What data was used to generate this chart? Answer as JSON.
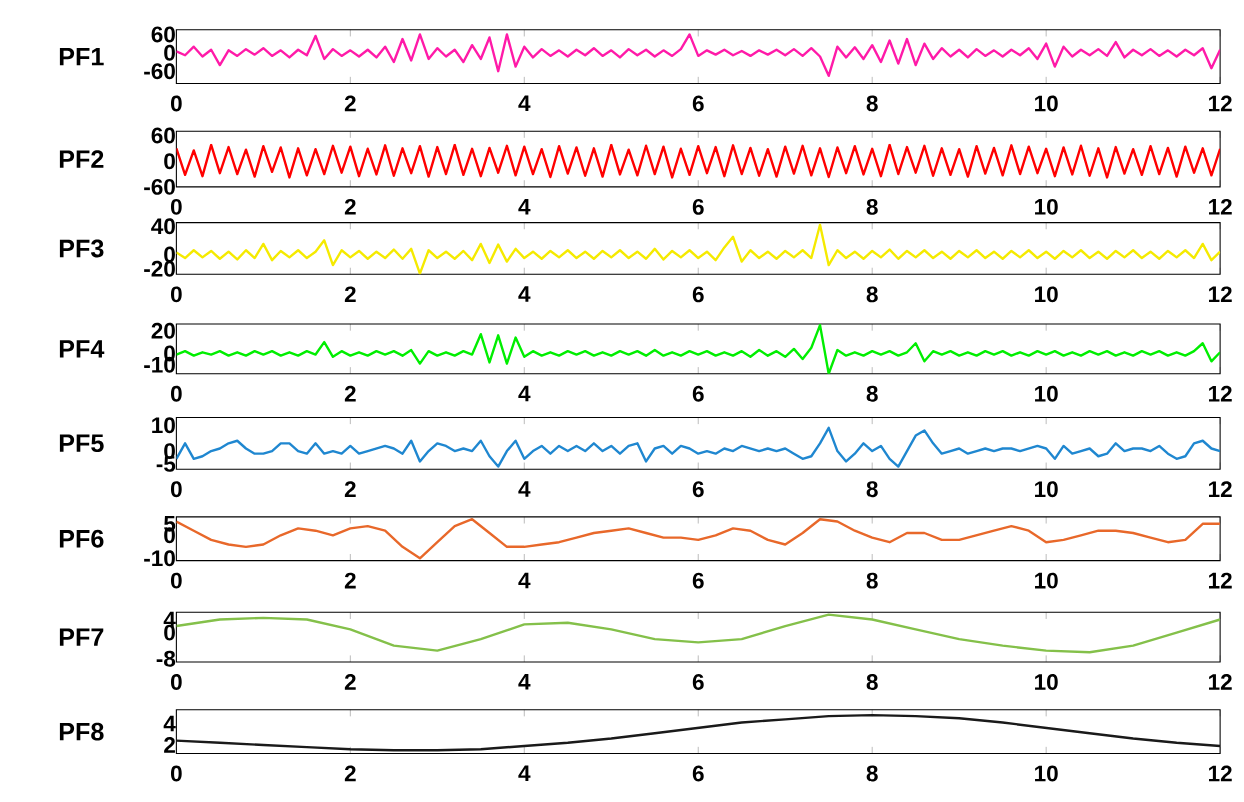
{
  "chart_data": [
    {
      "type": "line",
      "ylabel": "PF1",
      "xlim": [
        0,
        12
      ],
      "xticks": [
        0,
        2,
        4,
        6,
        8,
        10,
        12
      ],
      "ylim": [
        -100,
        75
      ],
      "yticks": [
        -60,
        0,
        60
      ],
      "x": [
        0,
        0.1,
        0.2,
        0.3,
        0.4,
        0.5,
        0.6,
        0.7,
        0.8,
        0.9,
        1,
        1.1,
        1.2,
        1.3,
        1.4,
        1.5,
        1.6,
        1.7,
        1.8,
        1.9,
        2,
        2.1,
        2.2,
        2.3,
        2.4,
        2.5,
        2.6,
        2.7,
        2.8,
        2.9,
        3,
        3.1,
        3.2,
        3.3,
        3.4,
        3.5,
        3.6,
        3.7,
        3.8,
        3.9,
        4,
        4.1,
        4.2,
        4.3,
        4.4,
        4.5,
        4.6,
        4.7,
        4.8,
        4.9,
        5,
        5.1,
        5.2,
        5.3,
        5.4,
        5.5,
        5.6,
        5.7,
        5.8,
        5.9,
        6,
        6.1,
        6.2,
        6.3,
        6.4,
        6.5,
        6.6,
        6.7,
        6.8,
        6.9,
        7,
        7.1,
        7.2,
        7.3,
        7.4,
        7.5,
        7.6,
        7.7,
        7.8,
        7.9,
        8,
        8.1,
        8.2,
        8.3,
        8.4,
        8.5,
        8.6,
        8.7,
        8.8,
        8.9,
        9,
        9.1,
        9.2,
        9.3,
        9.4,
        9.5,
        9.6,
        9.7,
        9.8,
        9.9,
        10,
        10.1,
        10.2,
        10.3,
        10.4,
        10.5,
        10.6,
        10.7,
        10.8,
        10.9,
        11,
        11.1,
        11.2,
        11.3,
        11.4,
        11.5,
        11.6,
        11.7,
        11.8,
        11.9,
        12
      ],
      "series": [
        {
          "color": "#ff1aa8",
          "values": [
            5,
            -8,
            20,
            -12,
            10,
            -40,
            8,
            -10,
            12,
            -6,
            15,
            -10,
            8,
            -15,
            10,
            -8,
            55,
            -20,
            12,
            -10,
            8,
            -12,
            10,
            -15,
            20,
            -30,
            45,
            -25,
            60,
            -20,
            15,
            -12,
            10,
            -30,
            25,
            -20,
            50,
            -60,
            60,
            -45,
            20,
            -15,
            12,
            -10,
            8,
            -12,
            10,
            -8,
            15,
            -10,
            8,
            -15,
            12,
            -8,
            10,
            -12,
            8,
            -10,
            12,
            60,
            -10,
            8,
            -6,
            10,
            -8,
            6,
            -10,
            8,
            -6,
            10,
            -8,
            12,
            -10,
            15,
            -12,
            -75,
            20,
            -15,
            18,
            -20,
            25,
            -30,
            40,
            -35,
            45,
            -40,
            30,
            -20,
            15,
            -12,
            10,
            -15,
            12,
            -10,
            8,
            -12,
            10,
            -8,
            15,
            -20,
            30,
            -45,
            20,
            -12,
            10,
            -8,
            12,
            -10,
            35,
            -15,
            10,
            -8,
            12,
            -10,
            8,
            -12,
            10,
            -8,
            15,
            -50,
            10
          ]
        }
      ]
    },
    {
      "type": "line",
      "ylabel": "PF2",
      "xlim": [
        0,
        12
      ],
      "xticks": [
        0,
        2,
        4,
        6,
        8,
        10,
        12
      ],
      "ylim": [
        -60,
        70
      ],
      "yticks": [
        -60,
        0,
        60
      ],
      "x": [
        0,
        0.1,
        0.2,
        0.3,
        0.4,
        0.5,
        0.6,
        0.7,
        0.8,
        0.9,
        1,
        1.1,
        1.2,
        1.3,
        1.4,
        1.5,
        1.6,
        1.7,
        1.8,
        1.9,
        2,
        2.1,
        2.2,
        2.3,
        2.4,
        2.5,
        2.6,
        2.7,
        2.8,
        2.9,
        3,
        3.1,
        3.2,
        3.3,
        3.4,
        3.5,
        3.6,
        3.7,
        3.8,
        3.9,
        4,
        4.1,
        4.2,
        4.3,
        4.4,
        4.5,
        4.6,
        4.7,
        4.8,
        4.9,
        5,
        5.1,
        5.2,
        5.3,
        5.4,
        5.5,
        5.6,
        5.7,
        5.8,
        5.9,
        6,
        6.1,
        6.2,
        6.3,
        6.4,
        6.5,
        6.6,
        6.7,
        6.8,
        6.9,
        7,
        7.1,
        7.2,
        7.3,
        7.4,
        7.5,
        7.6,
        7.7,
        7.8,
        7.9,
        8,
        8.1,
        8.2,
        8.3,
        8.4,
        8.5,
        8.6,
        8.7,
        8.8,
        8.9,
        9,
        9.1,
        9.2,
        9.3,
        9.4,
        9.5,
        9.6,
        9.7,
        9.8,
        9.9,
        10,
        10.1,
        10.2,
        10.3,
        10.4,
        10.5,
        10.6,
        10.7,
        10.8,
        10.9,
        11,
        11.1,
        11.2,
        11.3,
        11.4,
        11.5,
        11.6,
        11.7,
        11.8,
        11.9,
        12
      ],
      "series": [
        {
          "color": "#ff0000",
          "values": [
            30,
            -32,
            25,
            -35,
            38,
            -28,
            33,
            -30,
            27,
            -36,
            35,
            -25,
            32,
            -38,
            30,
            -33,
            28,
            -30,
            36,
            -27,
            34,
            -35,
            29,
            -31,
            37,
            -34,
            30,
            -28,
            35,
            -36,
            33,
            -30,
            38,
            -32,
            29,
            -35,
            31,
            -27,
            36,
            -33,
            34,
            -30,
            28,
            -37,
            35,
            -29,
            32,
            -34,
            30,
            -36,
            38,
            -31,
            27,
            -33,
            36,
            -30,
            34,
            -38,
            29,
            -32,
            35,
            -28,
            33,
            -35,
            37,
            -30,
            31,
            -34,
            28,
            -36,
            34,
            -29,
            36,
            -33,
            30,
            -37,
            32,
            -28,
            35,
            -31,
            29,
            -35,
            38,
            -30,
            33,
            -27,
            36,
            -34,
            30,
            -32,
            28,
            -36,
            35,
            -29,
            31,
            -33,
            37,
            -30,
            34,
            -28,
            29,
            -35,
            32,
            -31,
            36,
            -34,
            30,
            -38,
            33,
            -29,
            28,
            -32,
            35,
            -30,
            31,
            -36,
            34,
            -27,
            30,
            -33,
            29
          ]
        }
      ]
    },
    {
      "type": "line",
      "ylabel": "PF3",
      "xlim": [
        0,
        12
      ],
      "xticks": [
        0,
        2,
        4,
        6,
        8,
        10,
        12
      ],
      "ylim": [
        -28,
        45
      ],
      "yticks": [
        -20,
        0,
        40
      ],
      "x": [
        0,
        0.1,
        0.2,
        0.3,
        0.4,
        0.5,
        0.6,
        0.7,
        0.8,
        0.9,
        1,
        1.1,
        1.2,
        1.3,
        1.4,
        1.5,
        1.6,
        1.7,
        1.8,
        1.9,
        2,
        2.1,
        2.2,
        2.3,
        2.4,
        2.5,
        2.6,
        2.7,
        2.8,
        2.9,
        3,
        3.1,
        3.2,
        3.3,
        3.4,
        3.5,
        3.6,
        3.7,
        3.8,
        3.9,
        4,
        4.1,
        4.2,
        4.3,
        4.4,
        4.5,
        4.6,
        4.7,
        4.8,
        4.9,
        5,
        5.1,
        5.2,
        5.3,
        5.4,
        5.5,
        5.6,
        5.7,
        5.8,
        5.9,
        6,
        6.1,
        6.2,
        6.3,
        6.4,
        6.5,
        6.6,
        6.7,
        6.8,
        6.9,
        7,
        7.1,
        7.2,
        7.3,
        7.4,
        7.5,
        7.6,
        7.7,
        7.8,
        7.9,
        8,
        8.1,
        8.2,
        8.3,
        8.4,
        8.5,
        8.6,
        8.7,
        8.8,
        8.9,
        9,
        9.1,
        9.2,
        9.3,
        9.4,
        9.5,
        9.6,
        9.7,
        9.8,
        9.9,
        10,
        10.1,
        10.2,
        10.3,
        10.4,
        10.5,
        10.6,
        10.7,
        10.8,
        10.9,
        11,
        11.1,
        11.2,
        11.3,
        11.4,
        11.5,
        11.6,
        11.7,
        11.8,
        11.9,
        12
      ],
      "series": [
        {
          "color": "#f5ea00",
          "values": [
            3,
            -5,
            6,
            -4,
            5,
            -6,
            4,
            -7,
            6,
            -5,
            15,
            -8,
            5,
            -4,
            6,
            -5,
            4,
            20,
            -15,
            6,
            -4,
            5,
            -6,
            4,
            -5,
            7,
            -6,
            8,
            -27,
            6,
            -5,
            4,
            -6,
            5,
            -8,
            15,
            -12,
            14,
            -10,
            8,
            -5,
            4,
            -6,
            5,
            -4,
            6,
            -5,
            4,
            -6,
            5,
            -4,
            6,
            -5,
            4,
            -6,
            8,
            -7,
            5,
            -4,
            6,
            -5,
            4,
            -8,
            10,
            25,
            -10,
            6,
            -5,
            4,
            -6,
            5,
            -4,
            6,
            -5,
            42,
            -15,
            6,
            -5,
            4,
            -6,
            5,
            -4,
            7,
            -6,
            5,
            -4,
            6,
            -5,
            4,
            -6,
            5,
            -4,
            6,
            -5,
            4,
            -6,
            5,
            -4,
            6,
            -5,
            4,
            -6,
            5,
            -4,
            6,
            -5,
            4,
            -6,
            5,
            -4,
            6,
            -5,
            4,
            -6,
            5,
            -4,
            6,
            -5,
            15,
            -8,
            4
          ]
        }
      ]
    },
    {
      "type": "line",
      "ylabel": "PF4",
      "xlim": [
        0,
        12
      ],
      "xticks": [
        0,
        2,
        4,
        6,
        8,
        10,
        12
      ],
      "ylim": [
        -18,
        26
      ],
      "yticks": [
        -10,
        0,
        20
      ],
      "x": [
        0,
        0.1,
        0.2,
        0.3,
        0.4,
        0.5,
        0.6,
        0.7,
        0.8,
        0.9,
        1,
        1.1,
        1.2,
        1.3,
        1.4,
        1.5,
        1.6,
        1.7,
        1.8,
        1.9,
        2,
        2.1,
        2.2,
        2.3,
        2.4,
        2.5,
        2.6,
        2.7,
        2.8,
        2.9,
        3,
        3.1,
        3.2,
        3.3,
        3.4,
        3.5,
        3.6,
        3.7,
        3.8,
        3.9,
        4,
        4.1,
        4.2,
        4.3,
        4.4,
        4.5,
        4.6,
        4.7,
        4.8,
        4.9,
        5,
        5.1,
        5.2,
        5.3,
        5.4,
        5.5,
        5.6,
        5.7,
        5.8,
        5.9,
        6,
        6.1,
        6.2,
        6.3,
        6.4,
        6.5,
        6.6,
        6.7,
        6.8,
        6.9,
        7,
        7.1,
        7.2,
        7.3,
        7.4,
        7.5,
        7.6,
        7.7,
        7.8,
        7.9,
        8,
        8.1,
        8.2,
        8.3,
        8.4,
        8.5,
        8.6,
        8.7,
        8.8,
        8.9,
        9,
        9.1,
        9.2,
        9.3,
        9.4,
        9.5,
        9.6,
        9.7,
        9.8,
        9.9,
        10,
        10.1,
        10.2,
        10.3,
        10.4,
        10.5,
        10.6,
        10.7,
        10.8,
        10.9,
        11,
        11.1,
        11.2,
        11.3,
        11.4,
        11.5,
        11.6,
        11.7,
        11.8,
        11.9,
        12
      ],
      "series": [
        {
          "color": "#00ee00",
          "values": [
            -1,
            2,
            -2,
            1,
            -1,
            2,
            -2,
            1,
            -2,
            2,
            -1,
            2,
            -2,
            1,
            -2,
            2,
            -1,
            10,
            -3,
            2,
            -2,
            1,
            -2,
            2,
            -1,
            2,
            -2,
            3,
            -9,
            2,
            -2,
            1,
            -2,
            2,
            -1,
            17,
            -8,
            16,
            -9,
            14,
            -3,
            2,
            -2,
            1,
            -2,
            2,
            -1,
            2,
            -2,
            1,
            -2,
            2,
            -1,
            2,
            -2,
            3,
            -2,
            1,
            -2,
            2,
            -1,
            2,
            -2,
            1,
            -2,
            2,
            -3,
            3,
            -2,
            2,
            -3,
            4,
            -5,
            5,
            25,
            -18,
            3,
            -2,
            1,
            -2,
            2,
            -1,
            2,
            -2,
            1,
            9,
            -7,
            2,
            -1,
            2,
            -2,
            1,
            -2,
            2,
            -1,
            2,
            -2,
            1,
            -2,
            2,
            -1,
            2,
            -2,
            1,
            -2,
            2,
            -1,
            2,
            -2,
            1,
            -2,
            2,
            -1,
            2,
            -2,
            1,
            -2,
            2,
            9,
            -7,
            1
          ]
        }
      ]
    },
    {
      "type": "line",
      "ylabel": "PF5",
      "xlim": [
        0,
        12
      ],
      "xticks": [
        0,
        2,
        4,
        6,
        8,
        10,
        12
      ],
      "ylim": [
        -7,
        13
      ],
      "yticks": [
        -5,
        0,
        10
      ],
      "x": [
        0,
        0.1,
        0.2,
        0.3,
        0.4,
        0.5,
        0.6,
        0.7,
        0.8,
        0.9,
        1,
        1.1,
        1.2,
        1.3,
        1.4,
        1.5,
        1.6,
        1.7,
        1.8,
        1.9,
        2,
        2.1,
        2.2,
        2.3,
        2.4,
        2.5,
        2.6,
        2.7,
        2.8,
        2.9,
        3,
        3.1,
        3.2,
        3.3,
        3.4,
        3.5,
        3.6,
        3.7,
        3.8,
        3.9,
        4,
        4.1,
        4.2,
        4.3,
        4.4,
        4.5,
        4.6,
        4.7,
        4.8,
        4.9,
        5,
        5.1,
        5.2,
        5.3,
        5.4,
        5.5,
        5.6,
        5.7,
        5.8,
        5.9,
        6,
        6.1,
        6.2,
        6.3,
        6.4,
        6.5,
        6.6,
        6.7,
        6.8,
        6.9,
        7,
        7.1,
        7.2,
        7.3,
        7.4,
        7.5,
        7.6,
        7.7,
        7.8,
        7.9,
        8,
        8.1,
        8.2,
        8.3,
        8.4,
        8.5,
        8.6,
        8.7,
        8.8,
        8.9,
        9,
        9.1,
        9.2,
        9.3,
        9.4,
        9.5,
        9.6,
        9.7,
        9.8,
        9.9,
        10,
        10.1,
        10.2,
        10.3,
        10.4,
        10.5,
        10.6,
        10.7,
        10.8,
        10.9,
        11,
        11.1,
        11.2,
        11.3,
        11.4,
        11.5,
        11.6,
        11.7,
        11.8,
        11.9,
        12
      ],
      "series": [
        {
          "color": "#1f87d0",
          "values": [
            -3,
            3,
            -3,
            -2,
            0,
            1,
            3,
            4,
            1,
            -1,
            -1,
            0,
            3,
            3,
            0,
            -1,
            3,
            -1,
            0,
            -1,
            2,
            -1,
            0,
            1,
            2,
            1,
            -1,
            4,
            -4,
            0,
            3,
            2,
            0,
            1,
            0,
            4,
            -2,
            -6,
            0,
            4,
            -3,
            0,
            2,
            -1,
            2,
            0,
            2,
            0,
            3,
            0,
            2,
            -1,
            2,
            3,
            -4,
            1,
            2,
            -1,
            2,
            1,
            -1,
            0,
            -1,
            1,
            0,
            2,
            1,
            0,
            1,
            0,
            1,
            -1,
            -3,
            -2,
            3,
            9,
            0,
            -4,
            -1,
            3,
            0,
            2,
            -3,
            -6,
            0,
            6,
            8,
            3,
            -1,
            0,
            1,
            -1,
            0,
            1,
            0,
            1,
            1,
            0,
            1,
            2,
            1,
            -3,
            2,
            -1,
            0,
            1,
            -2,
            -1,
            3,
            0,
            1,
            1,
            0,
            2,
            -1,
            -3,
            -2,
            3,
            4,
            1,
            0
          ]
        }
      ]
    },
    {
      "type": "line",
      "ylabel": "PF6",
      "xlim": [
        0,
        12
      ],
      "xticks": [
        0,
        2,
        4,
        6,
        8,
        10,
        12
      ],
      "ylim": [
        -11,
        8
      ],
      "yticks": [
        -10,
        0,
        5
      ],
      "x": [
        0,
        0.2,
        0.4,
        0.6,
        0.8,
        1,
        1.2,
        1.4,
        1.6,
        1.8,
        2,
        2.2,
        2.4,
        2.6,
        2.8,
        3,
        3.2,
        3.4,
        3.6,
        3.8,
        4,
        4.2,
        4.4,
        4.6,
        4.8,
        5,
        5.2,
        5.4,
        5.6,
        5.8,
        6,
        6.2,
        6.4,
        6.6,
        6.8,
        7,
        7.2,
        7.4,
        7.6,
        7.8,
        8,
        8.2,
        8.4,
        8.6,
        8.8,
        9,
        9.2,
        9.4,
        9.6,
        9.8,
        10,
        10.2,
        10.4,
        10.6,
        10.8,
        11,
        11.2,
        11.4,
        11.6,
        11.8,
        12
      ],
      "series": [
        {
          "color": "#e8682a",
          "values": [
            6,
            2,
            -2,
            -4,
            -5,
            -4,
            0,
            3,
            2,
            0,
            3,
            4,
            2,
            -5,
            -10,
            -3,
            4,
            7,
            1,
            -5,
            -5,
            -4,
            -3,
            -1,
            1,
            2,
            3,
            1,
            -1,
            -1,
            -2,
            0,
            3,
            2,
            -2,
            -4,
            1,
            7,
            6,
            2,
            -1,
            -3,
            1,
            1,
            -2,
            -2,
            0,
            2,
            4,
            2,
            -3,
            -2,
            0,
            2,
            2,
            1,
            -1,
            -3,
            -2,
            5,
            5
          ]
        }
      ]
    },
    {
      "type": "line",
      "ylabel": "PF7",
      "xlim": [
        0,
        12
      ],
      "xticks": [
        0,
        2,
        4,
        6,
        8,
        10,
        12
      ],
      "ylim": [
        -9,
        6.2
      ],
      "yticks": [
        -8,
        0,
        4
      ],
      "x": [
        0,
        0.5,
        1,
        1.5,
        2,
        2.5,
        3,
        3.5,
        4,
        4.5,
        5,
        5.5,
        6,
        6.5,
        7,
        7.5,
        8,
        8.5,
        9,
        9.5,
        10,
        10.5,
        11,
        11.5,
        12
      ],
      "series": [
        {
          "color": "#84c04a",
          "values": [
            2,
            4,
            4.5,
            4,
            1,
            -4,
            -5.5,
            -2,
            2.5,
            3,
            1,
            -2,
            -3,
            -2,
            2,
            5.5,
            4,
            1,
            -2,
            -4,
            -5.5,
            -6,
            -4,
            0,
            4
          ]
        }
      ]
    },
    {
      "type": "line",
      "ylabel": "PF8",
      "xlim": [
        0,
        12
      ],
      "xticks": [
        0,
        2,
        4,
        6,
        8,
        10,
        12
      ],
      "ylim": [
        1.2,
        5.3
      ],
      "yticks": [
        2,
        4
      ],
      "x": [
        0,
        0.5,
        1,
        1.5,
        2,
        2.5,
        3,
        3.5,
        4,
        4.5,
        5,
        5.5,
        6,
        6.5,
        7,
        7.5,
        8,
        8.5,
        9,
        9.5,
        10,
        10.5,
        11,
        11.5,
        12
      ],
      "series": [
        {
          "color": "#1a1a1a",
          "values": [
            2.4,
            2.2,
            2,
            1.8,
            1.6,
            1.5,
            1.5,
            1.6,
            1.9,
            2.2,
            2.6,
            3.1,
            3.6,
            4.1,
            4.4,
            4.7,
            4.8,
            4.7,
            4.5,
            4.1,
            3.6,
            3.1,
            2.6,
            2.2,
            1.9
          ]
        }
      ]
    }
  ]
}
